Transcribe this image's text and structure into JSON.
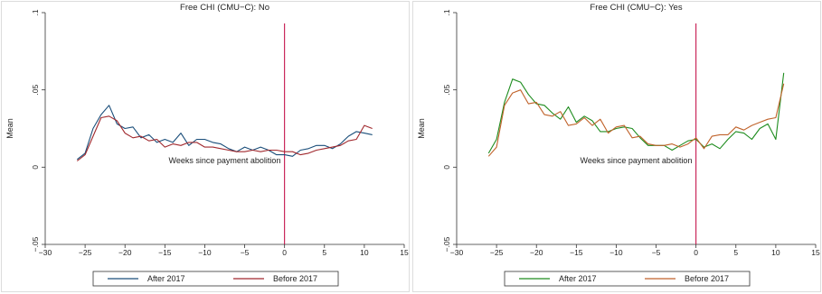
{
  "chart_data": [
    {
      "type": "line",
      "title": "Free CHI (CMU−C): No",
      "xlabel": "Weeks since payment abolition",
      "ylabel": "Mean",
      "xlim": [
        -30,
        15
      ],
      "ylim": [
        -0.05,
        0.1
      ],
      "xticks": [
        -30,
        -25,
        -20,
        -15,
        -10,
        -5,
        0,
        5,
        10,
        15
      ],
      "xtick_labels": [
        "−30",
        "−25",
        "−20",
        "−15",
        "−10",
        "−5",
        "0",
        "5",
        "10",
        "15"
      ],
      "yticks": [
        -0.05,
        0,
        0.05,
        0.1
      ],
      "ytick_labels": [
        "−.05",
        "0",
        ".05",
        ".1"
      ],
      "vline": 0,
      "vline_color": "#c0003c",
      "grid": false,
      "legend_position": "bottom",
      "x": [
        -26,
        -25,
        -24,
        -23,
        -22,
        -21,
        -20,
        -19,
        -18,
        -17,
        -16,
        -15,
        -14,
        -13,
        -12,
        -11,
        -10,
        -9,
        -8,
        -7,
        -6,
        -5,
        -4,
        -3,
        -2,
        -1,
        0,
        1,
        2,
        3,
        4,
        5,
        6,
        7,
        8,
        9,
        10,
        11
      ],
      "series": [
        {
          "name": "After 2017",
          "color": "#1a4e7a",
          "values": [
            0.005,
            0.009,
            0.025,
            0.034,
            0.04,
            0.028,
            0.025,
            0.026,
            0.019,
            0.021,
            0.016,
            0.018,
            0.016,
            0.022,
            0.014,
            0.018,
            0.018,
            0.016,
            0.015,
            0.012,
            0.01,
            0.013,
            0.011,
            0.013,
            0.011,
            0.008,
            0.008,
            0.007,
            0.011,
            0.012,
            0.014,
            0.014,
            0.012,
            0.015,
            0.02,
            0.023,
            0.022,
            0.021
          ]
        },
        {
          "name": "Before 2017",
          "color": "#a0282d",
          "values": [
            0.004,
            0.008,
            0.02,
            0.032,
            0.033,
            0.03,
            0.022,
            0.019,
            0.02,
            0.017,
            0.018,
            0.013,
            0.015,
            0.014,
            0.016,
            0.016,
            0.013,
            0.013,
            0.012,
            0.011,
            0.01,
            0.01,
            0.011,
            0.01,
            0.011,
            0.011,
            0.01,
            0.01,
            0.008,
            0.009,
            0.011,
            0.012,
            0.013,
            0.014,
            0.017,
            0.018,
            0.027,
            0.025
          ]
        }
      ]
    },
    {
      "type": "line",
      "title": "Free CHI (CMU−C): Yes",
      "xlabel": "Weeks since payment abolition",
      "ylabel": "Mean",
      "xlim": [
        -30,
        15
      ],
      "ylim": [
        -0.05,
        0.1
      ],
      "xticks": [
        -30,
        -25,
        -20,
        -15,
        -10,
        -5,
        0,
        5,
        10,
        15
      ],
      "xtick_labels": [
        "−30",
        "−25",
        "−20",
        "−15",
        "−10",
        "−5",
        "0",
        "5",
        "10",
        "15"
      ],
      "yticks": [
        -0.05,
        0,
        0.05,
        0.1
      ],
      "ytick_labels": [
        "−.05",
        "0",
        ".05",
        ".1"
      ],
      "vline": 0,
      "vline_color": "#c0003c",
      "grid": false,
      "legend_position": "bottom",
      "x": [
        -26,
        -25,
        -24,
        -23,
        -22,
        -21,
        -20,
        -19,
        -18,
        -17,
        -16,
        -15,
        -14,
        -13,
        -12,
        -11,
        -10,
        -9,
        -8,
        -7,
        -6,
        -5,
        -4,
        -3,
        -2,
        -1,
        0,
        1,
        2,
        3,
        4,
        5,
        6,
        7,
        8,
        9,
        10,
        11
      ],
      "series": [
        {
          "name": "After 2017",
          "color": "#1e8c1e",
          "values": [
            0.009,
            0.018,
            0.042,
            0.057,
            0.055,
            0.047,
            0.041,
            0.04,
            0.035,
            0.031,
            0.039,
            0.029,
            0.033,
            0.03,
            0.023,
            0.023,
            0.025,
            0.026,
            0.025,
            0.019,
            0.014,
            0.014,
            0.014,
            0.011,
            0.014,
            0.017,
            0.018,
            0.013,
            0.015,
            0.012,
            0.018,
            0.023,
            0.022,
            0.018,
            0.025,
            0.028,
            0.018,
            0.061
          ]
        },
        {
          "name": "Before 2017",
          "color": "#c0622a",
          "values": [
            0.007,
            0.013,
            0.04,
            0.048,
            0.05,
            0.041,
            0.042,
            0.034,
            0.033,
            0.036,
            0.027,
            0.028,
            0.032,
            0.027,
            0.031,
            0.022,
            0.026,
            0.027,
            0.019,
            0.02,
            0.015,
            0.014,
            0.014,
            0.015,
            0.013,
            0.015,
            0.019,
            0.012,
            0.02,
            0.021,
            0.021,
            0.026,
            0.024,
            0.027,
            0.029,
            0.031,
            0.032,
            0.054
          ]
        }
      ]
    }
  ]
}
